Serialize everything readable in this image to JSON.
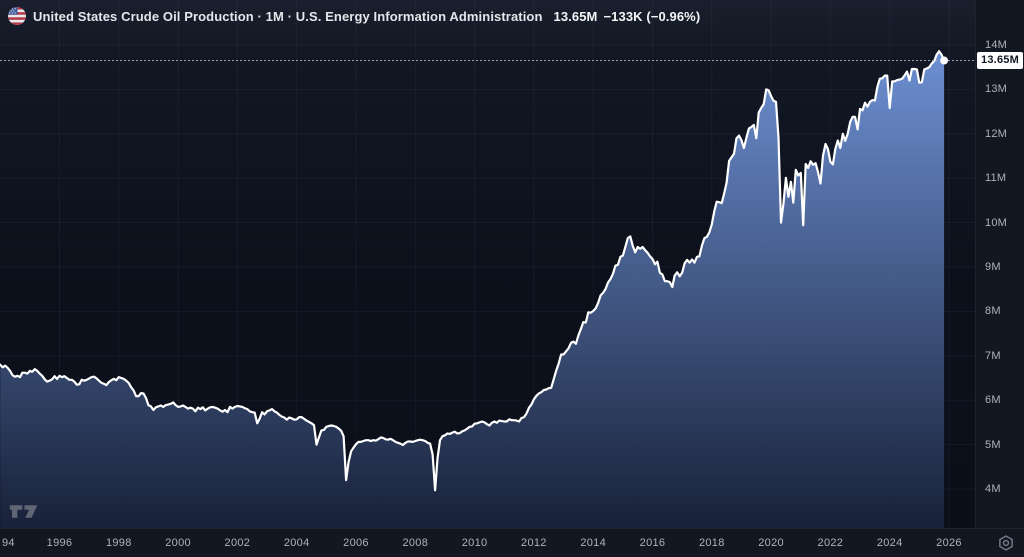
{
  "header": {
    "flag_icon": "us-flag-icon",
    "title": "United States Crude Oil Production · 1M · U.S. Energy Information Administration",
    "value": "13.65M",
    "change": "−133K (−0.96%)"
  },
  "price_scale": {
    "current_label": "13.65M",
    "current_value": 13.65,
    "ticks": [
      {
        "label": "14M",
        "value": 14
      },
      {
        "label": "13M",
        "value": 13
      },
      {
        "label": "12M",
        "value": 12
      },
      {
        "label": "11M",
        "value": 11
      },
      {
        "label": "10M",
        "value": 10
      },
      {
        "label": "9M",
        "value": 9
      },
      {
        "label": "8M",
        "value": 8
      },
      {
        "label": "7M",
        "value": 7
      },
      {
        "label": "6M",
        "value": 6
      },
      {
        "label": "5M",
        "value": 5
      },
      {
        "label": "4M",
        "value": 4
      }
    ]
  },
  "time_scale": {
    "ticks": [
      {
        "label": "94",
        "year": 1994
      },
      {
        "label": "1996",
        "year": 1996
      },
      {
        "label": "1998",
        "year": 1998
      },
      {
        "label": "2000",
        "year": 2000
      },
      {
        "label": "2002",
        "year": 2002
      },
      {
        "label": "2004",
        "year": 2004
      },
      {
        "label": "2006",
        "year": 2006
      },
      {
        "label": "2008",
        "year": 2008
      },
      {
        "label": "2010",
        "year": 2010
      },
      {
        "label": "2012",
        "year": 2012
      },
      {
        "label": "2014",
        "year": 2014
      },
      {
        "label": "2016",
        "year": 2016
      },
      {
        "label": "2018",
        "year": 2018
      },
      {
        "label": "2020",
        "year": 2020
      },
      {
        "label": "2022",
        "year": 2022
      },
      {
        "label": "2024",
        "year": 2024
      },
      {
        "label": "2026",
        "year": 2026
      }
    ]
  },
  "colors": {
    "line": "#ffffff",
    "fill_top": "#6f92d6",
    "fill_bottom": "#182138",
    "grid": "rgba(151,161,182,0.07)",
    "price_line": "#9aa0ab",
    "axis_text": "#aeb2bc",
    "label_box_bg": "#ffffff",
    "label_box_text": "#131722"
  },
  "chart_data": {
    "type": "area",
    "title": "United States Crude Oil Production",
    "interval": "1M",
    "source": "U.S. Energy Information Administration",
    "x_start": "1994-01",
    "x_end": "2025-11",
    "points_per_year": 12,
    "ylim": [
      3.1,
      14.35
    ],
    "grid": true,
    "last_point": {
      "date": "2025-11",
      "value": 13.65,
      "change": "−133K (−0.96%)"
    },
    "series": [
      {
        "name": "United States Crude Oil Production (million barrels/day, monthly)",
        "values": [
          6.8,
          6.74,
          6.78,
          6.73,
          6.66,
          6.56,
          6.53,
          6.55,
          6.52,
          6.62,
          6.62,
          6.6,
          6.66,
          6.64,
          6.7,
          6.66,
          6.6,
          6.55,
          6.47,
          6.42,
          6.44,
          6.47,
          6.54,
          6.48,
          6.55,
          6.52,
          6.54,
          6.5,
          6.46,
          6.46,
          6.42,
          6.35,
          6.36,
          6.46,
          6.44,
          6.46,
          6.49,
          6.52,
          6.53,
          6.49,
          6.44,
          6.39,
          6.37,
          6.34,
          6.41,
          6.45,
          6.48,
          6.45,
          6.52,
          6.5,
          6.48,
          6.44,
          6.39,
          6.29,
          6.22,
          6.09,
          6.09,
          6.16,
          6.15,
          6.05,
          5.89,
          5.86,
          5.78,
          5.84,
          5.86,
          5.88,
          5.85,
          5.89,
          5.9,
          5.92,
          5.95,
          5.89,
          5.85,
          5.86,
          5.88,
          5.85,
          5.81,
          5.83,
          5.81,
          5.75,
          5.83,
          5.8,
          5.84,
          5.77,
          5.81,
          5.84,
          5.85,
          5.83,
          5.81,
          5.77,
          5.74,
          5.78,
          5.73,
          5.85,
          5.81,
          5.85,
          5.87,
          5.86,
          5.85,
          5.82,
          5.8,
          5.75,
          5.73,
          5.72,
          5.48,
          5.58,
          5.73,
          5.68,
          5.75,
          5.77,
          5.8,
          5.75,
          5.72,
          5.67,
          5.63,
          5.61,
          5.56,
          5.61,
          5.59,
          5.56,
          5.57,
          5.62,
          5.62,
          5.58,
          5.54,
          5.51,
          5.48,
          5.44,
          5.0,
          5.16,
          5.32,
          5.33,
          5.4,
          5.42,
          5.43,
          5.42,
          5.4,
          5.36,
          5.31,
          5.19,
          4.2,
          4.61,
          4.85,
          4.93,
          5.01,
          5.06,
          5.06,
          5.08,
          5.1,
          5.1,
          5.08,
          5.1,
          5.09,
          5.12,
          5.16,
          5.15,
          5.12,
          5.11,
          5.13,
          5.1,
          5.06,
          5.04,
          5.02,
          4.99,
          5.04,
          5.07,
          5.07,
          5.06,
          5.08,
          5.1,
          5.11,
          5.1,
          5.08,
          5.04,
          5.02,
          4.78,
          3.97,
          4.69,
          5.1,
          5.19,
          5.21,
          5.25,
          5.24,
          5.27,
          5.29,
          5.25,
          5.26,
          5.3,
          5.32,
          5.36,
          5.4,
          5.41,
          5.47,
          5.48,
          5.5,
          5.52,
          5.5,
          5.46,
          5.43,
          5.49,
          5.52,
          5.49,
          5.54,
          5.53,
          5.52,
          5.52,
          5.57,
          5.55,
          5.55,
          5.54,
          5.52,
          5.6,
          5.62,
          5.7,
          5.83,
          5.9,
          6.02,
          6.1,
          6.15,
          6.18,
          6.23,
          6.24,
          6.27,
          6.28,
          6.47,
          6.66,
          6.82,
          7.03,
          7.03,
          7.1,
          7.17,
          7.29,
          7.32,
          7.27,
          7.46,
          7.6,
          7.76,
          7.75,
          7.98,
          7.97,
          8.01,
          8.07,
          8.19,
          8.36,
          8.42,
          8.51,
          8.65,
          8.73,
          8.85,
          9.03,
          9.05,
          9.23,
          9.26,
          9.45,
          9.65,
          9.69,
          9.48,
          9.33,
          9.45,
          9.41,
          9.45,
          9.38,
          9.32,
          9.24,
          9.18,
          9.06,
          9.12,
          8.87,
          8.83,
          8.68,
          8.68,
          8.66,
          8.55,
          8.81,
          8.88,
          8.79,
          8.87,
          9.08,
          9.16,
          9.1,
          9.17,
          9.1,
          9.23,
          9.24,
          9.48,
          9.65,
          9.68,
          9.78,
          9.96,
          10.26,
          10.47,
          10.46,
          10.44,
          10.66,
          10.9,
          11.39,
          11.47,
          11.55,
          11.9,
          11.96,
          11.86,
          11.68,
          11.91,
          12.12,
          12.15,
          12.2,
          11.9,
          12.48,
          12.58,
          12.67,
          13.0,
          12.98,
          12.85,
          12.74,
          12.72,
          11.91,
          10.0,
          10.44,
          11.01,
          10.58,
          10.92,
          10.45,
          11.19,
          11.06,
          11.12,
          9.94,
          11.32,
          11.23,
          11.38,
          11.3,
          11.34,
          11.14,
          10.88,
          11.51,
          11.77,
          11.66,
          11.37,
          11.31,
          11.66,
          11.85,
          11.68,
          12.0,
          11.84,
          12.0,
          12.27,
          12.38,
          12.38,
          12.1,
          12.56,
          12.53,
          12.7,
          12.61,
          12.72,
          12.76,
          12.75,
          13.05,
          13.24,
          13.25,
          13.31,
          13.31,
          12.58,
          13.18,
          13.18,
          13.21,
          13.22,
          13.24,
          13.31,
          13.4,
          13.2,
          13.46,
          13.46,
          13.45,
          13.15,
          13.16,
          13.45,
          13.47,
          13.5,
          13.58,
          13.64,
          13.78,
          13.86,
          13.78,
          13.65
        ]
      }
    ]
  }
}
